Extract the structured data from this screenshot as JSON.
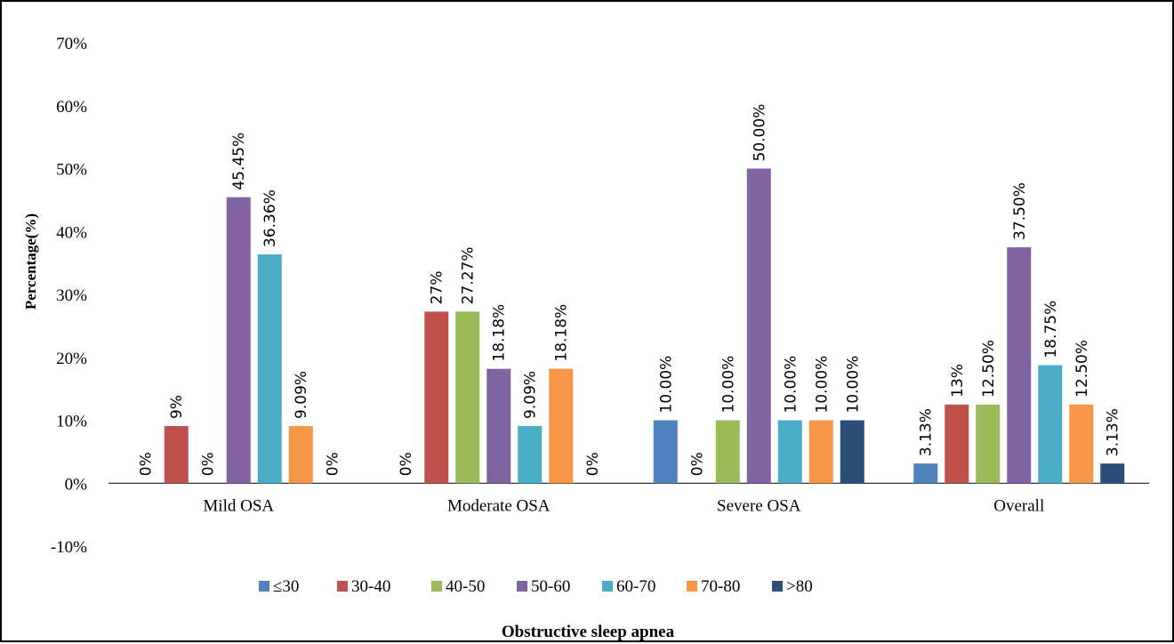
{
  "chart_data": {
    "type": "bar",
    "categories": [
      "Mild OSA",
      "Moderate OSA",
      "Severe OSA",
      "Overall"
    ],
    "series": [
      {
        "name": "≤30",
        "color": "#4F81BD",
        "values": [
          0,
          0,
          10.0,
          3.13
        ],
        "labels": [
          "0%",
          "0%",
          "10.00%",
          "3.13%"
        ]
      },
      {
        "name": "30-40",
        "color": "#C0504D",
        "values": [
          9.09,
          27.27,
          0,
          12.5
        ],
        "labels": [
          "9%",
          "27%",
          "0%",
          "13%"
        ]
      },
      {
        "name": "40-50",
        "color": "#9BBB59",
        "values": [
          0,
          27.27,
          10.0,
          12.5
        ],
        "labels": [
          "0%",
          "27.27%",
          "10.00%",
          "12.50%"
        ]
      },
      {
        "name": "50-60",
        "color": "#8064A2",
        "values": [
          45.45,
          18.18,
          50.0,
          37.5
        ],
        "labels": [
          "45.45%",
          "18.18%",
          "50.00%",
          "37.50%"
        ]
      },
      {
        "name": "60-70",
        "color": "#4BACC6",
        "values": [
          36.36,
          9.09,
          10.0,
          18.75
        ],
        "labels": [
          "36.36%",
          "9.09%",
          "10.00%",
          "18.75%"
        ]
      },
      {
        "name": "70-80",
        "color": "#F79646",
        "values": [
          9.09,
          18.18,
          10.0,
          12.5
        ],
        "labels": [
          "9.09%",
          "18.18%",
          "10.00%",
          "12.50%"
        ]
      },
      {
        "name": ">80",
        "color": "#2C4D75",
        "values": [
          0,
          0,
          10.0,
          3.13
        ],
        "labels": [
          "0%",
          "0%",
          "10.00%",
          "3.13%"
        ]
      }
    ],
    "yticks": [
      "-10%",
      "0%",
      "10%",
      "20%",
      "30%",
      "40%",
      "50%",
      "60%",
      "70%"
    ],
    "ylim": [
      -10,
      70
    ],
    "ylabel": "Percentage(%)",
    "xlabel": "Obstructive sleep apnea",
    "legend_position": "bottom",
    "grid": false
  }
}
